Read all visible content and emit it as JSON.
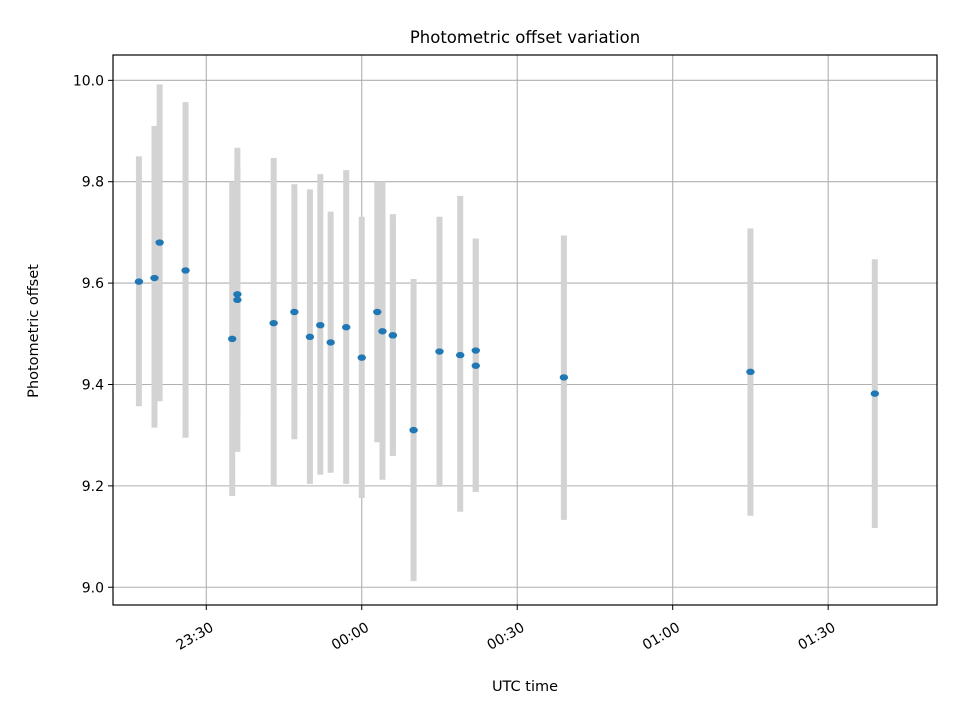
{
  "chart_data": {
    "type": "scatter",
    "title": "Photometric offset variation",
    "xlabel": "UTC time",
    "ylabel": "Photometric offset",
    "x_ticks": [
      "23:30",
      "00:00",
      "00:30",
      "01:00",
      "01:30"
    ],
    "y_ticks": [
      "9.0",
      "9.2",
      "9.4",
      "9.6",
      "9.8",
      "10.0"
    ],
    "xlim": [
      "23:12",
      "01:51"
    ],
    "ylim": [
      8.965,
      10.05
    ],
    "grid": true,
    "colors": {
      "point": "#1f77b4",
      "errorbar": "#d3d3d3",
      "grid": "#b0b0b0"
    },
    "points": [
      {
        "x": "23:17",
        "y": 9.603,
        "ylo": 9.357,
        "yhi": 9.85
      },
      {
        "x": "23:20",
        "y": 9.61,
        "ylo": 9.315,
        "yhi": 9.91
      },
      {
        "x": "23:21",
        "y": 9.68,
        "ylo": 9.367,
        "yhi": 9.992
      },
      {
        "x": "23:26",
        "y": 9.625,
        "ylo": 9.295,
        "yhi": 9.957
      },
      {
        "x": "23:35",
        "y": 9.49,
        "ylo": 9.18,
        "yhi": 9.8
      },
      {
        "x": "23:36",
        "y": 9.578,
        "ylo": 9.33,
        "yhi": 9.827
      },
      {
        "x": "23:36",
        "y": 9.567,
        "ylo": 9.267,
        "yhi": 9.867
      },
      {
        "x": "23:43",
        "y": 9.521,
        "ylo": 9.2,
        "yhi": 9.847
      },
      {
        "x": "23:47",
        "y": 9.543,
        "ylo": 9.292,
        "yhi": 9.795
      },
      {
        "x": "23:50",
        "y": 9.494,
        "ylo": 9.204,
        "yhi": 9.785
      },
      {
        "x": "23:52",
        "y": 9.517,
        "ylo": 9.222,
        "yhi": 9.815
      },
      {
        "x": "23:54",
        "y": 9.483,
        "ylo": 9.226,
        "yhi": 9.741
      },
      {
        "x": "23:57",
        "y": 9.513,
        "ylo": 9.204,
        "yhi": 9.823
      },
      {
        "x": "00:00",
        "y": 9.453,
        "ylo": 9.176,
        "yhi": 9.731
      },
      {
        "x": "00:03",
        "y": 9.543,
        "ylo": 9.286,
        "yhi": 9.8
      },
      {
        "x": "00:04",
        "y": 9.505,
        "ylo": 9.212,
        "yhi": 9.8
      },
      {
        "x": "00:06",
        "y": 9.497,
        "ylo": 9.259,
        "yhi": 9.736
      },
      {
        "x": "00:06",
        "y": 9.497,
        "ylo": 9.267,
        "yhi": 9.728
      },
      {
        "x": "00:10",
        "y": 9.31,
        "ylo": 9.012,
        "yhi": 9.608
      },
      {
        "x": "00:15",
        "y": 9.465,
        "ylo": 9.198,
        "yhi": 9.731
      },
      {
        "x": "00:19",
        "y": 9.458,
        "ylo": 9.149,
        "yhi": 9.772
      },
      {
        "x": "00:22",
        "y": 9.467,
        "ylo": 9.188,
        "yhi": 9.688
      },
      {
        "x": "00:22",
        "y": 9.437,
        "ylo": 9.188,
        "yhi": 9.688
      },
      {
        "x": "00:39",
        "y": 9.414,
        "ylo": 9.133,
        "yhi": 9.694
      },
      {
        "x": "01:15",
        "y": 9.425,
        "ylo": 9.141,
        "yhi": 9.708
      },
      {
        "x": "01:39",
        "y": 9.382,
        "ylo": 9.117,
        "yhi": 9.647
      }
    ]
  }
}
